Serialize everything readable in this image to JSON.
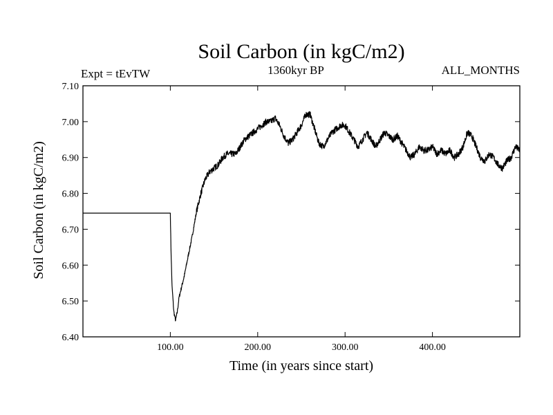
{
  "chart_data": {
    "type": "line",
    "title": "Soil Carbon (in kgC/m2)",
    "subtitle_left": "Expt = tEvTW",
    "subtitle_center": "1360kyr BP",
    "subtitle_right": "ALL_MONTHS",
    "xlabel": "Time (in years since start)",
    "ylabel": "Soil Carbon (in kgC/m2)",
    "xlim": [
      0,
      500
    ],
    "ylim": [
      6.4,
      7.1
    ],
    "xticks": [
      100,
      200,
      300,
      400
    ],
    "xtick_labels": [
      "100.00",
      "200.00",
      "300.00",
      "400.00"
    ],
    "yticks": [
      6.4,
      6.5,
      6.6,
      6.7,
      6.8,
      6.9,
      7.0,
      7.1
    ],
    "ytick_labels": [
      "6.40",
      "6.50",
      "6.60",
      "6.70",
      "6.80",
      "6.90",
      "7.00",
      "7.10"
    ],
    "grid": false,
    "series": [
      {
        "name": "Soil Carbon",
        "color": "#000000",
        "x": [
          0,
          99,
          100,
          101,
          102,
          104,
          106,
          108,
          110,
          113,
          116,
          120,
          125,
          130,
          135,
          140,
          145,
          150,
          155,
          160,
          165,
          170,
          175,
          180,
          185,
          190,
          195,
          200,
          205,
          210,
          215,
          220,
          225,
          230,
          235,
          240,
          245,
          250,
          255,
          260,
          265,
          270,
          275,
          280,
          285,
          290,
          295,
          300,
          305,
          310,
          315,
          320,
          325,
          330,
          335,
          340,
          345,
          350,
          355,
          360,
          365,
          370,
          375,
          380,
          385,
          390,
          395,
          400,
          405,
          410,
          415,
          420,
          425,
          430,
          435,
          440,
          445,
          450,
          455,
          460,
          465,
          470,
          475,
          480,
          485,
          490,
          495,
          500
        ],
        "values": [
          6.745,
          6.745,
          6.745,
          6.62,
          6.54,
          6.47,
          6.445,
          6.47,
          6.51,
          6.54,
          6.57,
          6.62,
          6.68,
          6.75,
          6.8,
          6.84,
          6.86,
          6.87,
          6.88,
          6.9,
          6.91,
          6.91,
          6.91,
          6.93,
          6.95,
          6.96,
          6.97,
          6.98,
          6.99,
          7.0,
          7.0,
          7.01,
          6.99,
          6.96,
          6.94,
          6.95,
          6.97,
          6.99,
          7.02,
          7.02,
          6.98,
          6.94,
          6.93,
          6.95,
          6.97,
          6.98,
          6.99,
          6.99,
          6.97,
          6.95,
          6.93,
          6.95,
          6.97,
          6.95,
          6.93,
          6.95,
          6.97,
          6.96,
          6.95,
          6.96,
          6.94,
          6.92,
          6.9,
          6.91,
          6.93,
          6.92,
          6.92,
          6.93,
          6.91,
          6.92,
          6.91,
          6.92,
          6.9,
          6.91,
          6.93,
          6.97,
          6.96,
          6.93,
          6.9,
          6.89,
          6.91,
          6.9,
          6.88,
          6.87,
          6.89,
          6.9,
          6.93,
          6.92
        ]
      }
    ]
  }
}
